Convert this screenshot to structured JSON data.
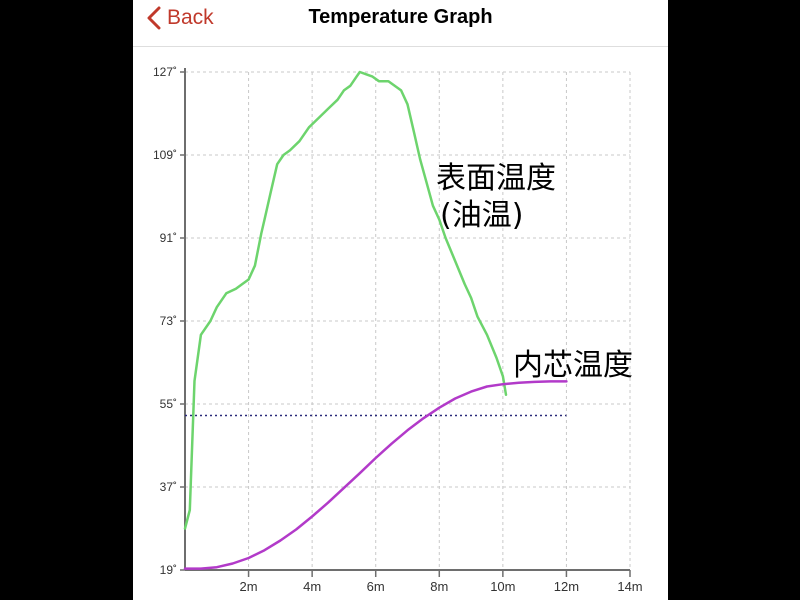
{
  "nav": {
    "back_label": "Back",
    "title": "Temperature Graph"
  },
  "colors": {
    "accent": "#c0392b",
    "surface_line": "#6dd46d",
    "core_line": "#b23ac9",
    "threshold_line": "#2a2a7a",
    "grid": "#c8c8c8",
    "axis": "#6e6e6e"
  },
  "chart_data": {
    "type": "line",
    "xlim": [
      0,
      14
    ],
    "ylim": [
      19,
      127
    ],
    "x_ticks": [
      2,
      4,
      6,
      8,
      10,
      12,
      14
    ],
    "x_tick_labels": [
      "2m",
      "4m",
      "6m",
      "8m",
      "10m",
      "12m",
      "14m"
    ],
    "y_ticks": [
      19,
      37,
      55,
      73,
      91,
      109,
      127
    ],
    "y_tick_labels": [
      "19˚",
      "37˚",
      "55˚",
      "73˚",
      "91˚",
      "109˚",
      "127˚"
    ],
    "grid": true,
    "threshold": 52.5,
    "annotations": {
      "surface_line1": "表面温度",
      "surface_line2": "(油温)",
      "core": "内芯温度"
    },
    "series": [
      {
        "key": "surface",
        "color": "#6dd46d",
        "x": [
          0,
          0.15,
          0.3,
          0.5,
          0.8,
          1.0,
          1.3,
          1.6,
          1.8,
          2.0,
          2.2,
          2.4,
          2.5,
          2.7,
          2.9,
          3.1,
          3.3,
          3.6,
          3.9,
          4.2,
          4.5,
          4.8,
          5.0,
          5.2,
          5.4,
          5.5,
          5.7,
          5.9,
          6.1,
          6.4,
          6.8,
          7.0,
          7.2,
          7.4,
          7.6,
          7.8,
          8.0,
          8.2,
          8.5,
          8.8,
          9.0,
          9.2,
          9.5,
          9.8,
          10.0,
          10.1
        ],
        "y": [
          28,
          32,
          60,
          70,
          73,
          76,
          79,
          80,
          81,
          82,
          85,
          92,
          95,
          101,
          107,
          109,
          110,
          112,
          115,
          117,
          119,
          121,
          123,
          124,
          126,
          127,
          126.5,
          126,
          125,
          125,
          123,
          120,
          114,
          108,
          103,
          98,
          95,
          91,
          86,
          81,
          78,
          74,
          70,
          65,
          61,
          57
        ]
      },
      {
        "key": "core",
        "color": "#b23ac9",
        "x": [
          0,
          0.5,
          1.0,
          1.5,
          2.0,
          2.5,
          3.0,
          3.5,
          4.0,
          4.5,
          5.0,
          5.5,
          6.0,
          6.5,
          7.0,
          7.5,
          8.0,
          8.5,
          9.0,
          9.5,
          10.0,
          10.5,
          11.0,
          11.5,
          12.0
        ],
        "y": [
          19.3,
          19.3,
          19.6,
          20.4,
          21.6,
          23.3,
          25.4,
          27.8,
          30.6,
          33.6,
          36.8,
          40.0,
          43.3,
          46.4,
          49.3,
          51.9,
          54.2,
          56.2,
          57.7,
          58.8,
          59.3,
          59.6,
          59.8,
          59.9,
          59.9
        ]
      }
    ]
  }
}
